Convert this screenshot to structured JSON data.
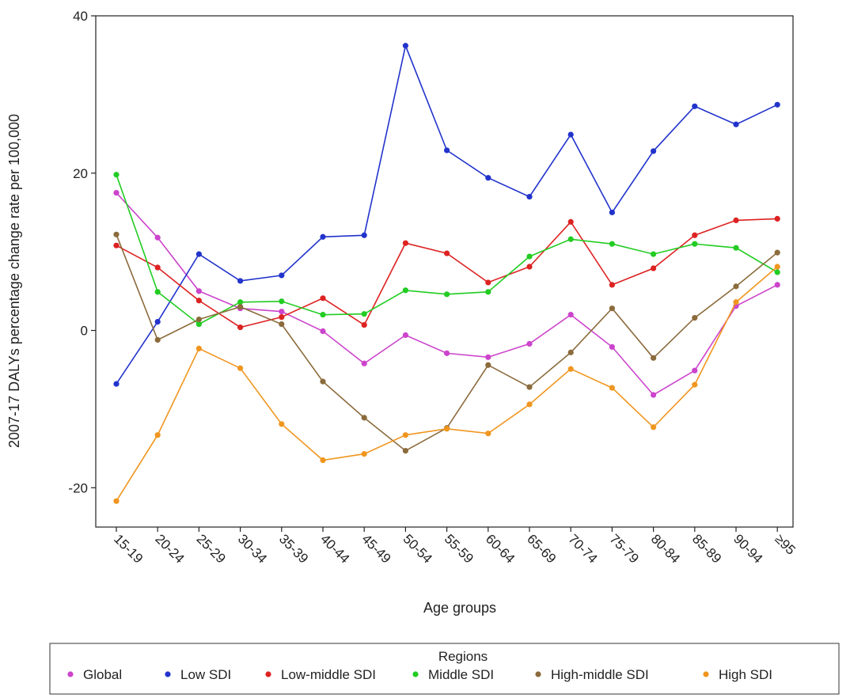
{
  "chart_data": {
    "type": "line",
    "xlabel": "Age groups",
    "ylabel": "2007-17 DALYs percentage change rate per 100,000",
    "categories": [
      "15-19",
      "20-24",
      "25-29",
      "30-34",
      "35-39",
      "40-44",
      "45-49",
      "50-54",
      "55-59",
      "60-64",
      "65-69",
      "70-74",
      "75-79",
      "80-84",
      "85-89",
      "90-94",
      "≥95"
    ],
    "ylim": [
      -25,
      40
    ],
    "yticks": [
      -20,
      0,
      20,
      40
    ],
    "ytick_labels": [
      "-20",
      "0",
      "20",
      "40"
    ],
    "grid": false,
    "legend": {
      "title": "Regions",
      "placement": "bottom"
    },
    "series": [
      {
        "name": "Global",
        "color": "#cc44cc",
        "values": [
          17.5,
          11.8,
          5.0,
          2.8,
          2.4,
          -0.1,
          -4.2,
          -0.6,
          -2.9,
          -3.4,
          -1.7,
          2.0,
          -2.1,
          -8.2,
          -5.1,
          3.1,
          5.8
        ]
      },
      {
        "name": "Low SDI",
        "color": "#2233cc",
        "values": [
          -6.8,
          1.1,
          9.7,
          6.3,
          7.0,
          11.9,
          12.1,
          36.2,
          22.9,
          19.4,
          17.0,
          24.9,
          15.0,
          22.8,
          28.5,
          26.2,
          28.7
        ]
      },
      {
        "name": "Low-middle SDI",
        "color": "#dd2222",
        "values": [
          10.8,
          8.0,
          3.8,
          0.4,
          1.7,
          4.1,
          0.7,
          11.1,
          9.8,
          6.1,
          8.1,
          13.8,
          5.8,
          7.9,
          12.1,
          14.0,
          14.2
        ]
      },
      {
        "name": "Middle SDI",
        "color": "#22cc22",
        "values": [
          19.8,
          4.9,
          0.8,
          3.6,
          3.7,
          2.0,
          2.1,
          5.1,
          4.6,
          4.9,
          9.4,
          11.6,
          11.0,
          9.7,
          11.0,
          10.5,
          7.4
        ]
      },
      {
        "name": "High-middle SDI",
        "color": "#8b6b3c",
        "values": [
          12.2,
          -1.2,
          1.4,
          3.0,
          0.8,
          -6.5,
          -11.1,
          -15.3,
          -12.4,
          -4.4,
          -7.2,
          -2.8,
          2.8,
          -3.5,
          1.6,
          5.6,
          9.9
        ]
      },
      {
        "name": "High SDI",
        "color": "#f0961f",
        "values": [
          -21.7,
          -13.3,
          -2.3,
          -4.8,
          -11.9,
          -16.5,
          -15.7,
          -13.3,
          -12.5,
          -13.1,
          -9.4,
          -4.9,
          -7.3,
          -12.3,
          -6.9,
          3.6,
          8.1
        ]
      }
    ]
  }
}
